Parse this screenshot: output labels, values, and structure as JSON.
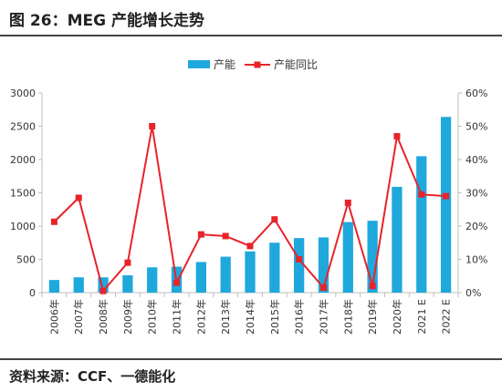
{
  "title": "图 26：MEG 产能增长走势",
  "source": "资料来源：CCF、一德能化",
  "colors": {
    "bar": "#1fa8dc",
    "line": "#e8232a",
    "axis": "#bfbfbf",
    "text": "#333333"
  },
  "chart_data": {
    "type": "bar",
    "categories": [
      "2006年",
      "2007年",
      "2008年",
      "2009年",
      "2010年",
      "2011年",
      "2012年",
      "2013年",
      "2014年",
      "2015年",
      "2016年",
      "2017年",
      "2018年",
      "2019年",
      "2020年",
      "2021 E",
      "2022 E"
    ],
    "series": [
      {
        "name": "产能",
        "type": "bar",
        "axis": "left",
        "values": [
          190,
          230,
          230,
          260,
          380,
          390,
          460,
          540,
          620,
          750,
          820,
          830,
          1060,
          1080,
          1590,
          2050,
          2640
        ]
      },
      {
        "name": "产能同比",
        "type": "line",
        "axis": "right",
        "values": [
          0.213,
          0.285,
          0.005,
          0.09,
          0.5,
          0.03,
          0.175,
          0.17,
          0.14,
          0.22,
          0.1,
          0.015,
          0.27,
          0.02,
          0.47,
          0.295,
          0.29
        ]
      }
    ],
    "ylim": [
      0,
      3000
    ],
    "yticks": [
      "0",
      "500",
      "1000",
      "1500",
      "2000",
      "2500",
      "3000"
    ],
    "y2lim": [
      0,
      0.6
    ],
    "y2ticks": [
      "0%",
      "10%",
      "20%",
      "30%",
      "40%",
      "50%",
      "60%"
    ],
    "legend": "top",
    "grid": false
  }
}
